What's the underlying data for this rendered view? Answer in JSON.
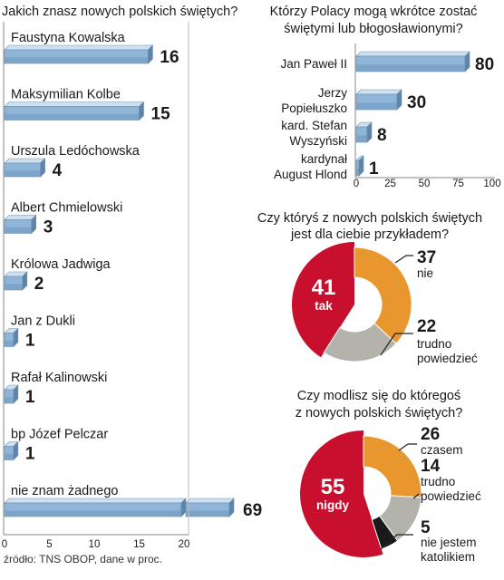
{
  "chart_data": [
    {
      "type": "bar",
      "orientation": "horizontal",
      "title": "Jakich znasz nowych polskich świętych?",
      "categories": [
        "Faustyna Kowalska",
        "Maksymilian Kolbe",
        "Urszula Ledóchowska",
        "Albert Chmielowski",
        "Królowa Jadwiga",
        "Jan z Dukli",
        "Rafał Kalinowski",
        "bp Józef Pelczar",
        "nie znam żadnego"
      ],
      "values": [
        16,
        15,
        4,
        3,
        2,
        1,
        1,
        1,
        69
      ],
      "labels": [
        "16",
        "15",
        "4",
        "3",
        "2",
        "1",
        "1",
        "1",
        "69"
      ],
      "xlim": [
        0,
        20
      ],
      "axis_break": true,
      "ticks": [
        "0",
        "5",
        "10",
        "15",
        "20"
      ],
      "color": "#8fb6d8"
    },
    {
      "type": "bar",
      "orientation": "horizontal",
      "title": "Którzy Polacy mogą wkrótce zostać świętymi lub błogosławionymi?",
      "categories": [
        "Jan Paweł II",
        "Jerzy Popiełuszko",
        "kard. Stefan Wyszyński",
        "kardynał August Hlond"
      ],
      "category_lines": [
        [
          "Jan Paweł II"
        ],
        [
          "Jerzy",
          "Popiełuszko"
        ],
        [
          "kard. Stefan",
          "Wyszyński"
        ],
        [
          "kardynał",
          "August Hlond"
        ]
      ],
      "values": [
        80,
        30,
        8,
        1
      ],
      "labels": [
        "80",
        "30",
        "8",
        "1"
      ],
      "xlim": [
        0,
        100
      ],
      "ticks": [
        "0",
        "25",
        "50",
        "75",
        "100"
      ],
      "color": "#8fb6d8"
    },
    {
      "type": "pie",
      "donut": true,
      "title": "Czy któryś z nowych polskich świętych jest dla ciebie przykładem?",
      "title_lines": [
        "Czy któryś z nowych polskich świętych",
        "jest dla ciebie przykładem?"
      ],
      "slices": [
        {
          "label": "tak",
          "value": 41,
          "value_text": "41",
          "color": "#c8102e"
        },
        {
          "label": "nie",
          "value": 37,
          "value_text": "37",
          "color": "#e8962e"
        },
        {
          "label": "trudno powiedzieć",
          "label_lines": [
            "trudno",
            "powiedzieć"
          ],
          "value": 22,
          "value_text": "22",
          "color": "#b3b3ab"
        }
      ]
    },
    {
      "type": "pie",
      "donut": true,
      "title": "Czy modlisz się do któregoś z nowych polskich świętych?",
      "title_lines": [
        "Czy modlisz się do któregoś",
        "z nowych polskich świętych?"
      ],
      "slices": [
        {
          "label": "nigdy",
          "value": 55,
          "value_text": "55",
          "color": "#c8102e"
        },
        {
          "label": "czasem",
          "value": 26,
          "value_text": "26",
          "color": "#e8962e"
        },
        {
          "label": "trudno powiedzieć",
          "label_lines": [
            "trudno",
            "powiedzieć"
          ],
          "value": 14,
          "value_text": "14",
          "color": "#b3b3ab"
        },
        {
          "label": "nie jestem katolikiem",
          "label_lines": [
            "nie jestem",
            "katolikiem"
          ],
          "value": 5,
          "value_text": "5",
          "color": "#1a1a1a"
        }
      ]
    }
  ],
  "source": "źródło: TNS OBOP, dane w proc."
}
